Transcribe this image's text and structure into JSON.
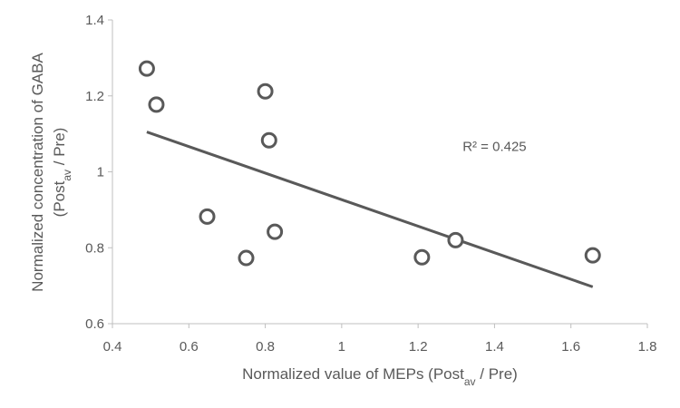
{
  "chart_data": {
    "type": "scatter",
    "title": "",
    "xlabel": {
      "main": "Normalized value of MEPs (Post",
      "sub": "av",
      "tail": " / Pre)"
    },
    "ylabel": {
      "line1": "Normalized concentration of GABA",
      "line2": {
        "main": "(Post",
        "sub": "av",
        "tail": " / Pre)"
      }
    },
    "xlim": [
      0.4,
      1.8
    ],
    "ylim": [
      0.6,
      1.4
    ],
    "xticks": [
      "0.4",
      "0.6",
      "0.8",
      "1",
      "1.2",
      "1.4",
      "1.6",
      "1.8"
    ],
    "yticks": [
      "0.6",
      "0.8",
      "1",
      "1.2",
      "1.4"
    ],
    "grid": false,
    "points": [
      {
        "x": 0.49,
        "y": 1.272
      },
      {
        "x": 0.515,
        "y": 1.177
      },
      {
        "x": 0.648,
        "y": 0.882
      },
      {
        "x": 0.75,
        "y": 0.773
      },
      {
        "x": 0.8,
        "y": 1.212
      },
      {
        "x": 0.81,
        "y": 1.083
      },
      {
        "x": 0.825,
        "y": 0.842
      },
      {
        "x": 1.21,
        "y": 0.775
      },
      {
        "x": 1.298,
        "y": 0.82
      },
      {
        "x": 1.657,
        "y": 0.78
      }
    ],
    "trendline": {
      "x1": 0.49,
      "y1": 1.105,
      "x2": 1.657,
      "y2": 0.697
    },
    "annotation": {
      "text": "R² = 0.425",
      "x": 1.4,
      "y": 1.055
    },
    "colors": {
      "marker": "#595959",
      "line": "#595959",
      "axis": "#bfbfbf"
    }
  }
}
